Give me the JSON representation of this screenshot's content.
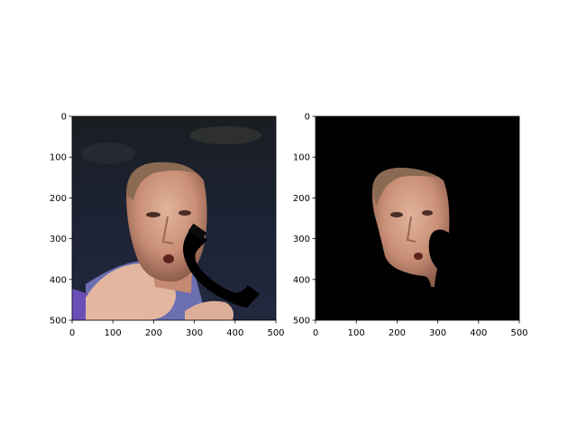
{
  "chart_data": [
    {
      "type": "image",
      "content": "photo of a man's face with black phone-shaped occlusion",
      "xlim": [
        0,
        500
      ],
      "ylim": [
        500,
        0
      ],
      "xticks": [
        0,
        100,
        200,
        300,
        400,
        500
      ],
      "yticks": [
        0,
        100,
        200,
        300,
        400,
        500
      ],
      "xtick_labels": [
        "0",
        "100",
        "200",
        "300",
        "400",
        "500"
      ],
      "ytick_labels": [
        "0",
        "100",
        "200",
        "300",
        "400",
        "500"
      ],
      "background": "#1c2131",
      "grid": false
    },
    {
      "type": "image",
      "content": "segmented face mask on black background",
      "xlim": [
        0,
        500
      ],
      "ylim": [
        500,
        0
      ],
      "xticks": [
        0,
        100,
        200,
        300,
        400,
        500
      ],
      "yticks": [
        0,
        100,
        200,
        300,
        400,
        500
      ],
      "xtick_labels": [
        "0",
        "100",
        "200",
        "300",
        "400",
        "500"
      ],
      "ytick_labels": [
        "0",
        "100",
        "200",
        "300",
        "400",
        "500"
      ],
      "background": "#000000",
      "grid": false
    }
  ]
}
